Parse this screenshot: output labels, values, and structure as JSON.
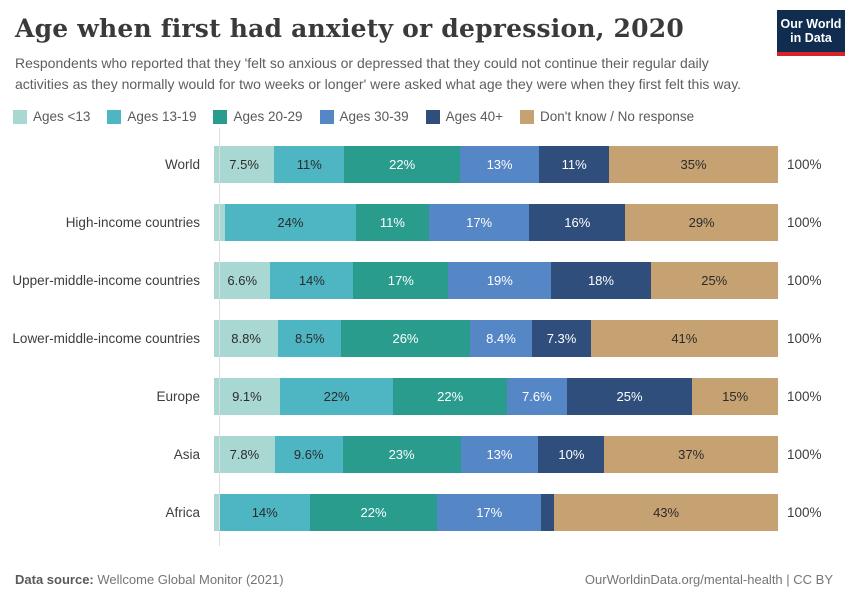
{
  "header": {
    "title": "Age when first had anxiety or depression, 2020",
    "subtitle": "Respondents who reported that they 'felt so anxious or depressed that they could not continue their regular daily activities as they normally would for two weeks or longer' were asked what age they were when they first felt this way.",
    "logo": {
      "line1": "Our World",
      "line2": "in Data",
      "bg_color": "#102d50",
      "stripe_color": "#d8232a"
    }
  },
  "chart_data": {
    "type": "bar",
    "stacked": true,
    "orientation": "horizontal",
    "unit": "%",
    "xlim": [
      0,
      100
    ],
    "grid": false,
    "legend_position": "top",
    "axis_color": "#dddddd",
    "row_total_label": "100%",
    "categories": [
      "World",
      "High-income countries",
      "Upper-middle-income countries",
      "Lower-middle-income countries",
      "Europe",
      "Asia",
      "Africa"
    ],
    "series": [
      {
        "name": "Ages <13",
        "color": "#a9d8d2",
        "label_color": "#2b2b2b",
        "values": [
          7.5,
          2.5,
          6.6,
          8.8,
          9.1,
          7.8,
          1.2
        ],
        "display": [
          "7.5%",
          "",
          "6.6%",
          "8.8%",
          "9.1%",
          "7.8%",
          ""
        ]
      },
      {
        "name": "Ages 13-19",
        "color": "#4eb6c2",
        "label_color": "#2b2b2b",
        "values": [
          11,
          24,
          14,
          8.5,
          22,
          9.6,
          14
        ],
        "display": [
          "11%",
          "24%",
          "14%",
          "8.5%",
          "22%",
          "9.6%",
          "14%"
        ]
      },
      {
        "name": "Ages 20-29",
        "color": "#2a9c8e",
        "label_color": "#ffffff",
        "values": [
          22,
          11,
          17,
          26,
          22,
          23,
          22
        ],
        "display": [
          "22%",
          "11%",
          "17%",
          "26%",
          "22%",
          "23%",
          "22%"
        ]
      },
      {
        "name": "Ages 30-39",
        "color": "#5586c5",
        "label_color": "#ffffff",
        "values": [
          13,
          17,
          19,
          8.4,
          7.6,
          13,
          17
        ],
        "display": [
          "13%",
          "17%",
          "19%",
          "8.4%",
          "7.6%",
          "13%",
          "17%"
        ]
      },
      {
        "name": "Ages 40+",
        "color": "#2f4e7b",
        "label_color": "#ffffff",
        "values": [
          11,
          16,
          18,
          7.3,
          25,
          10,
          2.8
        ],
        "display": [
          "11%",
          "16%",
          "18%",
          "7.3%",
          "25%",
          "10%",
          ""
        ]
      },
      {
        "name": "Don't know / No response",
        "color": "#c6a272",
        "label_color": "#2b2b2b",
        "values": [
          35,
          29,
          25,
          41,
          15,
          37,
          43
        ],
        "display": [
          "35%",
          "29%",
          "25%",
          "41%",
          "15%",
          "37%",
          "43%"
        ]
      }
    ]
  },
  "footer": {
    "source_label": "Data source:",
    "source_text": " Wellcome Global Monitor (2021)",
    "right_text": "OurWorldinData.org/mental-health | CC BY"
  }
}
